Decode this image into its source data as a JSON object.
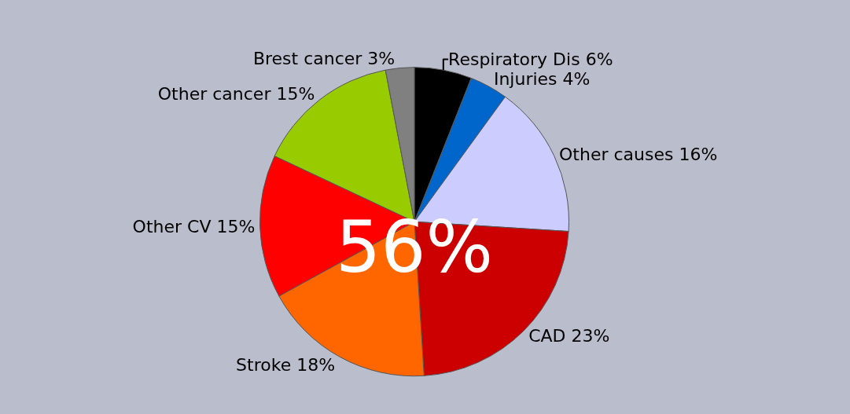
{
  "chart_data": {
    "type": "pie",
    "categories": [
      "Respiratory Dis",
      "Injuries",
      "Other causes",
      "CAD",
      "Stroke",
      "Other CV",
      "Other cancer",
      "Brest cancer"
    ],
    "values": [
      6,
      4,
      16,
      23,
      18,
      15,
      15,
      3
    ],
    "value_labels": [
      "6%",
      "4%",
      "16%",
      "23%",
      "18%",
      "15%",
      "15%",
      "3%"
    ],
    "colors": [
      "#000000",
      "#0066cc",
      "#ccccff",
      "#cc0000",
      "#ff6600",
      "#ff0000",
      "#99cc00",
      "#808080"
    ],
    "annotations": [
      "56%"
    ],
    "legend": false
  }
}
